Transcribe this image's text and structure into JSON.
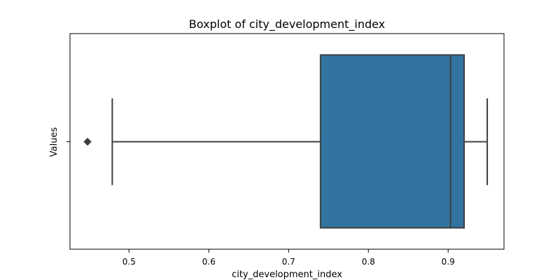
{
  "chart_data": {
    "type": "boxplot",
    "title": "Boxplot of city_development_index",
    "xlabel": "city_development_index",
    "ylabel": "Values",
    "xlim": [
      0.426,
      0.97
    ],
    "x_ticks": [
      0.5,
      0.6,
      0.7,
      0.8,
      0.9
    ],
    "y_ticks": [
      ""
    ],
    "grid": false,
    "orientation": "horizontal",
    "colors": {
      "box_fill": "#3274a1",
      "line": "#3f3f3f",
      "frame": "#000000",
      "outlier": "#3f3f3f"
    },
    "box": {
      "whisker_low": 0.479,
      "q1": 0.74,
      "median": 0.903,
      "q3": 0.92,
      "whisker_high": 0.949,
      "outliers": [
        0.448
      ]
    }
  }
}
